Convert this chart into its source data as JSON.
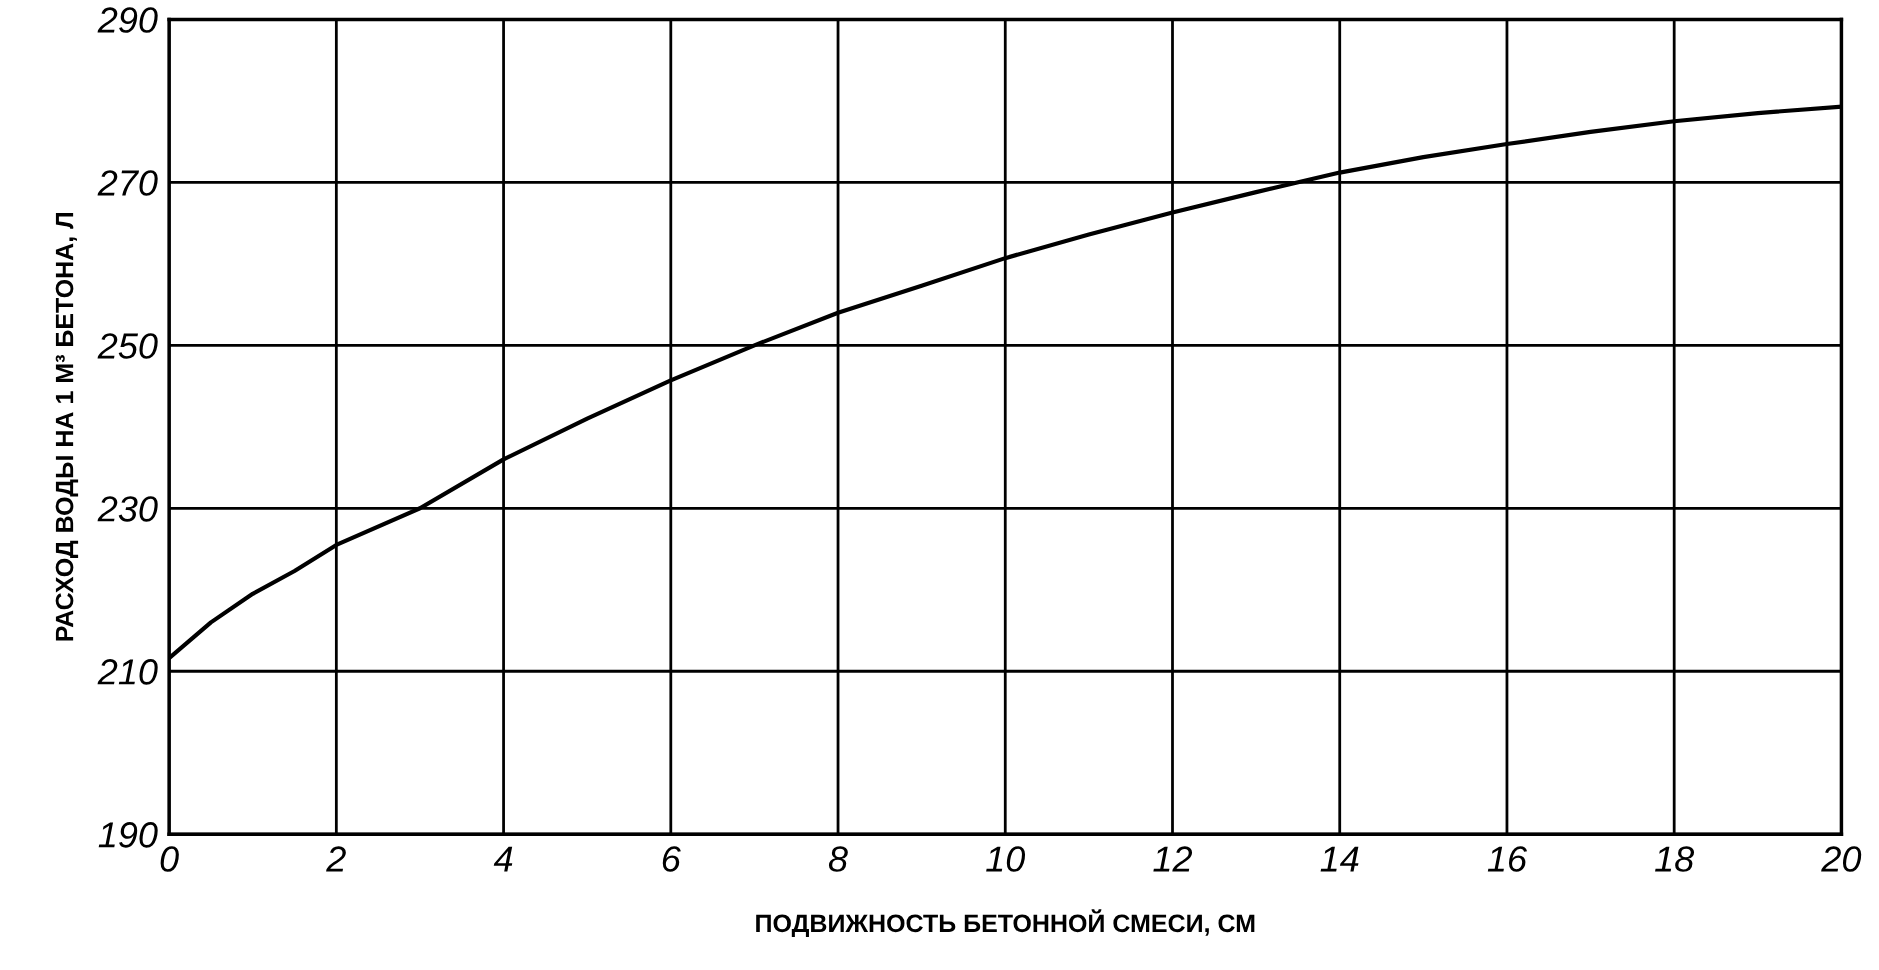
{
  "chart_data": {
    "type": "line",
    "xlabel": "ПОДВИЖНОСТЬ БЕТОННОЙ СМЕСИ, СМ",
    "ylabel": "РАСХОД ВОДЫ НА 1 М³ БЕТОНА, Л",
    "x": [
      0,
      0.5,
      1,
      1.5,
      2,
      3,
      4,
      5,
      6,
      7,
      8,
      9,
      10,
      11,
      12,
      13,
      14,
      15,
      16,
      17,
      18,
      19,
      20
    ],
    "series": [
      {
        "color": "#000000",
        "values": [
          211.6,
          216,
          219.5,
          222.3,
          225.5,
          230,
          236,
          241,
          245.7,
          250,
          254,
          257.3,
          260.7,
          263.6,
          266.3,
          268.8,
          271.2,
          273.1,
          274.7,
          276.2,
          277.5,
          278.5,
          279.3
        ]
      }
    ],
    "xlim": [
      0,
      20
    ],
    "xticks": [
      0,
      2,
      4,
      6,
      8,
      10,
      12,
      14,
      16,
      18,
      20
    ],
    "ylim": [
      190,
      290
    ],
    "yticks": [
      190,
      210,
      230,
      250,
      270,
      290
    ],
    "grid": true,
    "marker": "none",
    "line_style": "solid"
  }
}
